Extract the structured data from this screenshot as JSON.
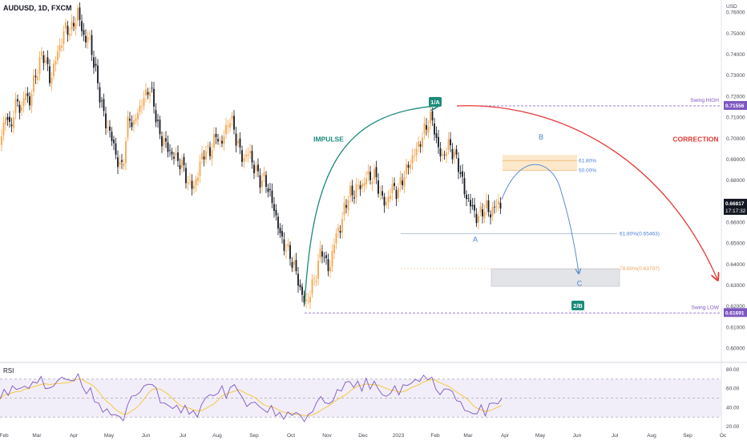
{
  "title": "AUDUSD, 1D, FXCM",
  "currency_label": "USD",
  "rsi_label": "RSI",
  "colors": {
    "up": "#f7a54a",
    "down": "#131722",
    "impulse": "#1a8a7a",
    "correction": "#e53935",
    "wave": "#4a80d6",
    "swing": "#7e57c2",
    "fib78": "#f0a35c",
    "rsi": "#7e57c2",
    "rsi_ma": "#f5c842"
  },
  "annotations": {
    "impulse": "IMPULSE",
    "correction": "CORRECTION",
    "wave_1a": "1/A",
    "wave_2b": "2/B",
    "wave_a": "A",
    "wave_b": "B",
    "wave_c": "C",
    "fib_618_upper": "61.80%",
    "fib_500": "50.00%",
    "fib_618_lower": "61.80%(0.65463)",
    "fib_786": "78.60%(0.63797)",
    "swing_high": "Swing HIGH",
    "swing_low": "Swing LOW"
  },
  "chart_data": {
    "type": "candlestick",
    "title": "AUDUSD, 1D, FXCM",
    "symbol": "AUDUSD",
    "interval": "1D",
    "source": "FXCM",
    "y_unit": "USD",
    "x_ticks": [
      "Feb",
      "Mar",
      "Apr",
      "May",
      "Jun",
      "Jul",
      "Aug",
      "Sep",
      "Oct",
      "Nov",
      "Dec",
      "2023",
      "Feb",
      "Mar",
      "Apr",
      "May",
      "Jun",
      "Jul",
      "Aug",
      "Sep",
      "Oc"
    ],
    "y_ticks": [
      "0.76000",
      "0.75000",
      "0.74000",
      "0.73000",
      "0.72000",
      "0.71000",
      "0.70000",
      "0.69000",
      "0.68000",
      "0.67000",
      "0.66000",
      "0.65000",
      "0.64000",
      "0.63000",
      "0.62000",
      "0.61000",
      "0.60000"
    ],
    "ylim": [
      0.596,
      0.766
    ],
    "last_price": "0.66817",
    "countdown": "17:17:32",
    "swing_high": "0.71556",
    "swing_low": "0.61691",
    "fib_levels": [
      {
        "label": "61.80%",
        "value": 0.6895
      },
      {
        "label": "50.00%",
        "value": 0.6848
      },
      {
        "label": "61.80%(0.65463)",
        "value": 0.65463
      },
      {
        "label": "78.60%(0.63797)",
        "value": 0.63797
      }
    ],
    "price_path": [
      {
        "x": 0,
        "y": 0.697
      },
      {
        "x": 7,
        "y": 0.712
      },
      {
        "x": 12,
        "y": 0.705
      },
      {
        "x": 17,
        "y": 0.712
      },
      {
        "x": 22,
        "y": 0.718
      },
      {
        "x": 27,
        "y": 0.713
      },
      {
        "x": 32,
        "y": 0.723
      },
      {
        "x": 37,
        "y": 0.716
      },
      {
        "x": 42,
        "y": 0.728
      },
      {
        "x": 48,
        "y": 0.733
      },
      {
        "x": 53,
        "y": 0.742
      },
      {
        "x": 58,
        "y": 0.735
      },
      {
        "x": 63,
        "y": 0.727
      },
      {
        "x": 68,
        "y": 0.736
      },
      {
        "x": 73,
        "y": 0.742
      },
      {
        "x": 78,
        "y": 0.748
      },
      {
        "x": 83,
        "y": 0.754
      },
      {
        "x": 88,
        "y": 0.75
      },
      {
        "x": 93,
        "y": 0.756
      },
      {
        "x": 97,
        "y": 0.76
      },
      {
        "x": 101,
        "y": 0.754
      },
      {
        "x": 106,
        "y": 0.746
      },
      {
        "x": 111,
        "y": 0.75
      },
      {
        "x": 116,
        "y": 0.738
      },
      {
        "x": 121,
        "y": 0.728
      },
      {
        "x": 126,
        "y": 0.718
      },
      {
        "x": 131,
        "y": 0.708
      },
      {
        "x": 136,
        "y": 0.704
      },
      {
        "x": 141,
        "y": 0.698
      },
      {
        "x": 146,
        "y": 0.69
      },
      {
        "x": 151,
        "y": 0.685
      },
      {
        "x": 156,
        "y": 0.695
      },
      {
        "x": 161,
        "y": 0.712
      },
      {
        "x": 166,
        "y": 0.705
      },
      {
        "x": 171,
        "y": 0.712
      },
      {
        "x": 176,
        "y": 0.716
      },
      {
        "x": 181,
        "y": 0.72
      },
      {
        "x": 186,
        "y": 0.725
      },
      {
        "x": 191,
        "y": 0.718
      },
      {
        "x": 196,
        "y": 0.708
      },
      {
        "x": 201,
        "y": 0.698
      },
      {
        "x": 206,
        "y": 0.7
      },
      {
        "x": 211,
        "y": 0.692
      },
      {
        "x": 216,
        "y": 0.694
      },
      {
        "x": 221,
        "y": 0.688
      },
      {
        "x": 226,
        "y": 0.69
      },
      {
        "x": 231,
        "y": 0.682
      },
      {
        "x": 236,
        "y": 0.679
      },
      {
        "x": 241,
        "y": 0.676
      },
      {
        "x": 246,
        "y": 0.682
      },
      {
        "x": 251,
        "y": 0.69
      },
      {
        "x": 256,
        "y": 0.695
      },
      {
        "x": 261,
        "y": 0.692
      },
      {
        "x": 266,
        "y": 0.699
      },
      {
        "x": 271,
        "y": 0.701
      },
      {
        "x": 276,
        "y": 0.697
      },
      {
        "x": 281,
        "y": 0.703
      },
      {
        "x": 286,
        "y": 0.71
      },
      {
        "x": 291,
        "y": 0.706
      },
      {
        "x": 296,
        "y": 0.698
      },
      {
        "x": 301,
        "y": 0.692
      },
      {
        "x": 306,
        "y": 0.69
      },
      {
        "x": 311,
        "y": 0.695
      },
      {
        "x": 316,
        "y": 0.686
      },
      {
        "x": 321,
        "y": 0.684
      },
      {
        "x": 326,
        "y": 0.679
      },
      {
        "x": 331,
        "y": 0.681
      },
      {
        "x": 336,
        "y": 0.674
      },
      {
        "x": 341,
        "y": 0.668
      },
      {
        "x": 346,
        "y": 0.66
      },
      {
        "x": 351,
        "y": 0.652
      },
      {
        "x": 356,
        "y": 0.648
      },
      {
        "x": 361,
        "y": 0.645
      },
      {
        "x": 366,
        "y": 0.64
      },
      {
        "x": 371,
        "y": 0.634
      },
      {
        "x": 376,
        "y": 0.626
      },
      {
        "x": 381,
        "y": 0.621
      },
      {
        "x": 386,
        "y": 0.625
      },
      {
        "x": 391,
        "y": 0.632
      },
      {
        "x": 396,
        "y": 0.638
      },
      {
        "x": 401,
        "y": 0.648
      },
      {
        "x": 406,
        "y": 0.642
      },
      {
        "x": 411,
        "y": 0.636
      },
      {
        "x": 416,
        "y": 0.65
      },
      {
        "x": 421,
        "y": 0.655
      },
      {
        "x": 426,
        "y": 0.66
      },
      {
        "x": 431,
        "y": 0.668
      },
      {
        "x": 436,
        "y": 0.675
      },
      {
        "x": 441,
        "y": 0.672
      },
      {
        "x": 446,
        "y": 0.679
      },
      {
        "x": 451,
        "y": 0.675
      },
      {
        "x": 456,
        "y": 0.683
      },
      {
        "x": 461,
        "y": 0.68
      },
      {
        "x": 466,
        "y": 0.684
      },
      {
        "x": 471,
        "y": 0.678
      },
      {
        "x": 476,
        "y": 0.672
      },
      {
        "x": 481,
        "y": 0.668
      },
      {
        "x": 486,
        "y": 0.674
      },
      {
        "x": 491,
        "y": 0.677
      },
      {
        "x": 496,
        "y": 0.674
      },
      {
        "x": 501,
        "y": 0.68
      },
      {
        "x": 506,
        "y": 0.684
      },
      {
        "x": 511,
        "y": 0.688
      },
      {
        "x": 516,
        "y": 0.692
      },
      {
        "x": 521,
        "y": 0.696
      },
      {
        "x": 526,
        "y": 0.7
      },
      {
        "x": 531,
        "y": 0.705
      },
      {
        "x": 536,
        "y": 0.71
      },
      {
        "x": 541,
        "y": 0.707
      },
      {
        "x": 546,
        "y": 0.696
      },
      {
        "x": 551,
        "y": 0.691
      },
      {
        "x": 556,
        "y": 0.694
      },
      {
        "x": 561,
        "y": 0.698
      },
      {
        "x": 566,
        "y": 0.692
      },
      {
        "x": 571,
        "y": 0.689
      },
      {
        "x": 576,
        "y": 0.681
      },
      {
        "x": 581,
        "y": 0.672
      },
      {
        "x": 586,
        "y": 0.67
      },
      {
        "x": 591,
        "y": 0.665
      },
      {
        "x": 596,
        "y": 0.662
      },
      {
        "x": 601,
        "y": 0.665
      },
      {
        "x": 606,
        "y": 0.668
      },
      {
        "x": 611,
        "y": 0.664
      },
      {
        "x": 616,
        "y": 0.667
      },
      {
        "x": 621,
        "y": 0.669
      },
      {
        "x": 626,
        "y": 0.668
      }
    ],
    "rsi": {
      "label": "RSI",
      "ylim": [
        20,
        85
      ],
      "y_ticks": [
        "80.00",
        "60.00",
        "40.00",
        "20.00"
      ],
      "bands": [
        30,
        70
      ],
      "values": [
        49,
        58,
        55,
        60,
        62,
        58,
        64,
        60,
        66,
        68,
        70,
        63,
        58,
        64,
        68,
        71,
        72,
        66,
        71,
        73,
        64,
        54,
        60,
        48,
        42,
        38,
        36,
        34,
        32,
        30,
        28,
        40,
        55,
        50,
        58,
        62,
        64,
        66,
        58,
        48,
        42,
        44,
        38,
        42,
        36,
        40,
        36,
        34,
        32,
        42,
        50,
        55,
        50,
        58,
        60,
        52,
        60,
        64,
        58,
        48,
        44,
        42,
        48,
        40,
        38,
        36,
        40,
        34,
        32,
        30,
        34,
        32,
        36,
        30,
        28,
        30,
        38,
        44,
        52,
        46,
        42,
        50,
        56,
        60,
        65,
        68,
        62,
        66,
        60,
        68,
        62,
        66,
        60,
        54,
        50,
        58,
        60,
        56,
        62,
        64,
        66,
        68,
        70,
        71,
        72,
        70,
        60,
        54,
        58,
        62,
        54,
        50,
        44,
        38,
        36,
        32,
        36,
        40,
        34,
        42,
        46,
        44,
        48
      ]
    }
  }
}
